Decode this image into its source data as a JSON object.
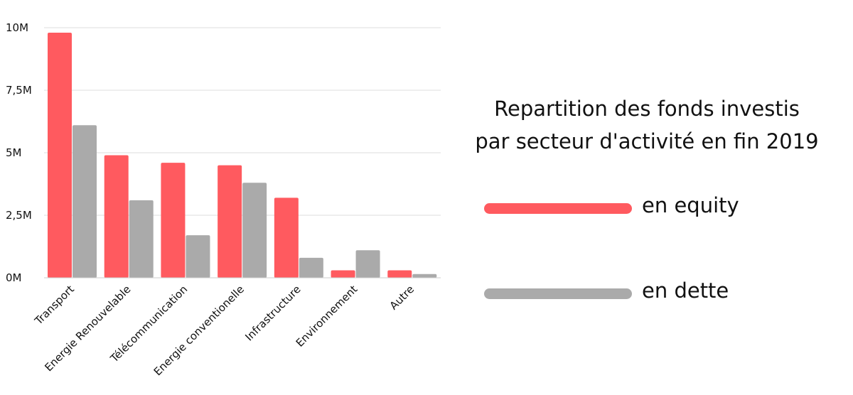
{
  "chart_data": {
    "type": "bar",
    "title_lines": [
      "Repartition des fonds investis",
      "par secteur d'activité en fin 2019"
    ],
    "categories": [
      "Transport",
      "Energie Renouvelable",
      "Télécommunication",
      "Energie conventionelle",
      "Infrastructure",
      "Environnement",
      "Autre"
    ],
    "series": [
      {
        "name": "en equity",
        "color": "#ff5a5f",
        "values": [
          9.8,
          4.9,
          4.6,
          4.5,
          3.2,
          0.3,
          0.3
        ]
      },
      {
        "name": "en dette",
        "color": "#aaaaaa",
        "values": [
          6.1,
          3.1,
          1.7,
          3.8,
          0.8,
          1.1,
          0.15
        ]
      }
    ],
    "yticks": [
      {
        "value": 0,
        "label": "0M"
      },
      {
        "value": 2.5,
        "label": "2,5M"
      },
      {
        "value": 5,
        "label": "5M"
      },
      {
        "value": 7.5,
        "label": "7,5M"
      },
      {
        "value": 10,
        "label": "10M"
      }
    ],
    "ylim": [
      0,
      10
    ],
    "grid": true,
    "legend_position": "right"
  }
}
